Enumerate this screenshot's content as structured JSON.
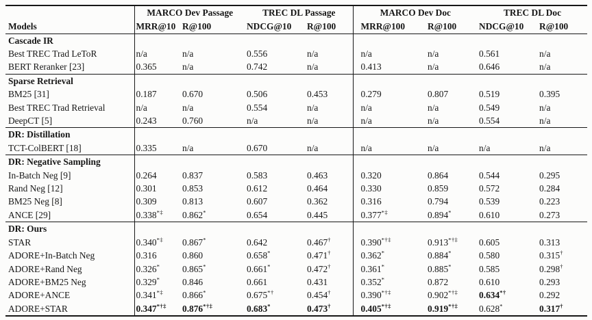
{
  "colors": {
    "background": "#fcfcfb",
    "text": "#161616",
    "rule": "#161616"
  },
  "table": {
    "models_label": "Models",
    "groups": [
      "MARCO Dev Passage",
      "TREC DL Passage",
      "MARCO Dev Doc",
      "TREC DL Doc"
    ],
    "metrics": [
      "MRR@10",
      "R@100",
      "NDCG@10",
      "R@100",
      "MRR@100",
      "R@100",
      "NDCG@10",
      "R@100"
    ],
    "sections": [
      {
        "title": "Cascade IR",
        "rows": [
          {
            "model": "Best TREC Trad LeToR",
            "cells": [
              {
                "v": "n/a"
              },
              {
                "v": "n/a"
              },
              {
                "v": "0.556"
              },
              {
                "v": "n/a"
              },
              {
                "v": "n/a"
              },
              {
                "v": "n/a"
              },
              {
                "v": "0.561"
              },
              {
                "v": "n/a"
              }
            ]
          },
          {
            "model": "BERT Reranker [23]",
            "cells": [
              {
                "v": "0.365"
              },
              {
                "v": "n/a"
              },
              {
                "v": "0.742"
              },
              {
                "v": "n/a"
              },
              {
                "v": "0.413"
              },
              {
                "v": "n/a"
              },
              {
                "v": "0.646"
              },
              {
                "v": "n/a"
              }
            ]
          }
        ]
      },
      {
        "title": "Sparse Retrieval",
        "rows": [
          {
            "model": "BM25 [31]",
            "cells": [
              {
                "v": "0.187"
              },
              {
                "v": "0.670"
              },
              {
                "v": "0.506"
              },
              {
                "v": "0.453"
              },
              {
                "v": "0.279"
              },
              {
                "v": "0.807"
              },
              {
                "v": "0.519"
              },
              {
                "v": "0.395"
              }
            ]
          },
          {
            "model": "Best TREC Trad Retrieval",
            "cells": [
              {
                "v": "n/a"
              },
              {
                "v": "n/a"
              },
              {
                "v": "0.554"
              },
              {
                "v": "n/a"
              },
              {
                "v": "n/a"
              },
              {
                "v": "n/a"
              },
              {
                "v": "0.549"
              },
              {
                "v": "n/a"
              }
            ]
          },
          {
            "model": "DeepCT [5]",
            "cells": [
              {
                "v": "0.243"
              },
              {
                "v": "0.760"
              },
              {
                "v": "n/a"
              },
              {
                "v": "n/a"
              },
              {
                "v": "n/a"
              },
              {
                "v": "n/a"
              },
              {
                "v": "0.554"
              },
              {
                "v": "n/a"
              }
            ]
          }
        ]
      },
      {
        "title": "DR: Distillation",
        "rows": [
          {
            "model": "TCT-ColBERT [18]",
            "cells": [
              {
                "v": "0.335"
              },
              {
                "v": "n/a"
              },
              {
                "v": "0.670"
              },
              {
                "v": "n/a"
              },
              {
                "v": "n/a"
              },
              {
                "v": "n/a"
              },
              {
                "v": "n/a"
              },
              {
                "v": "n/a"
              }
            ]
          }
        ]
      },
      {
        "title": "DR: Negative Sampling",
        "rows": [
          {
            "model": "In-Batch Neg [9]",
            "cells": [
              {
                "v": "0.264"
              },
              {
                "v": "0.837"
              },
              {
                "v": "0.583"
              },
              {
                "v": "0.463"
              },
              {
                "v": "0.320"
              },
              {
                "v": "0.864"
              },
              {
                "v": "0.544"
              },
              {
                "v": "0.295"
              }
            ]
          },
          {
            "model": "Rand Neg [12]",
            "cells": [
              {
                "v": "0.301"
              },
              {
                "v": "0.853"
              },
              {
                "v": "0.612"
              },
              {
                "v": "0.464"
              },
              {
                "v": "0.330"
              },
              {
                "v": "0.859"
              },
              {
                "v": "0.572"
              },
              {
                "v": "0.284"
              }
            ]
          },
          {
            "model": "BM25 Neg [8]",
            "cells": [
              {
                "v": "0.309"
              },
              {
                "v": "0.813"
              },
              {
                "v": "0.607"
              },
              {
                "v": "0.362"
              },
              {
                "v": "0.316"
              },
              {
                "v": "0.794"
              },
              {
                "v": "0.539"
              },
              {
                "v": "0.223"
              }
            ]
          },
          {
            "model": "ANCE [29]",
            "cells": [
              {
                "v": "0.338",
                "s": "*‡"
              },
              {
                "v": "0.862",
                "s": "*"
              },
              {
                "v": "0.654"
              },
              {
                "v": "0.445"
              },
              {
                "v": "0.377",
                "s": "*‡"
              },
              {
                "v": "0.894",
                "s": "*"
              },
              {
                "v": "0.610"
              },
              {
                "v": "0.273"
              }
            ]
          }
        ]
      },
      {
        "title": "DR: Ours",
        "rows": [
          {
            "model": "STAR",
            "cells": [
              {
                "v": "0.340",
                "s": "*‡"
              },
              {
                "v": "0.867",
                "s": "*"
              },
              {
                "v": "0.642"
              },
              {
                "v": "0.467",
                "s": "†"
              },
              {
                "v": "0.390",
                "s": "*†‡"
              },
              {
                "v": "0.913",
                "s": "*†‡"
              },
              {
                "v": "0.605"
              },
              {
                "v": "0.313"
              }
            ]
          },
          {
            "model": "ADORE+In-Batch Neg",
            "cells": [
              {
                "v": "0.316"
              },
              {
                "v": "0.860"
              },
              {
                "v": "0.658",
                "s": "*"
              },
              {
                "v": "0.471",
                "s": "†"
              },
              {
                "v": "0.362",
                "s": "*"
              },
              {
                "v": "0.884",
                "s": "*"
              },
              {
                "v": "0.580"
              },
              {
                "v": "0.315",
                "s": "†"
              }
            ]
          },
          {
            "model": "ADORE+Rand Neg",
            "cells": [
              {
                "v": "0.326",
                "s": "*"
              },
              {
                "v": "0.865",
                "s": "*"
              },
              {
                "v": "0.661",
                "s": "*"
              },
              {
                "v": "0.472",
                "s": "†"
              },
              {
                "v": "0.361",
                "s": "*"
              },
              {
                "v": "0.885",
                "s": "*"
              },
              {
                "v": "0.585"
              },
              {
                "v": "0.298",
                "s": "†"
              }
            ]
          },
          {
            "model": "ADORE+BM25 Neg",
            "cells": [
              {
                "v": "0.329",
                "s": "*"
              },
              {
                "v": "0.846"
              },
              {
                "v": "0.661"
              },
              {
                "v": "0.431"
              },
              {
                "v": "0.352",
                "s": "*"
              },
              {
                "v": "0.872"
              },
              {
                "v": "0.610"
              },
              {
                "v": "0.293"
              }
            ]
          },
          {
            "model": "ADORE+ANCE",
            "cells": [
              {
                "v": "0.341",
                "s": "*‡"
              },
              {
                "v": "0.866",
                "s": "*"
              },
              {
                "v": "0.675",
                "s": "*†"
              },
              {
                "v": "0.454",
                "s": "†"
              },
              {
                "v": "0.390",
                "s": "*†‡"
              },
              {
                "v": "0.902",
                "s": "*†‡"
              },
              {
                "v": "0.634",
                "s": "*†",
                "b": true
              },
              {
                "v": "0.292"
              }
            ]
          },
          {
            "model": "ADORE+STAR",
            "cells": [
              {
                "v": "0.347",
                "s": "*†‡",
                "b": true
              },
              {
                "v": "0.876",
                "s": "*†‡",
                "b": true
              },
              {
                "v": "0.683",
                "s": "*",
                "b": true
              },
              {
                "v": "0.473",
                "s": "†",
                "b": true
              },
              {
                "v": "0.405",
                "s": "*†‡",
                "b": true
              },
              {
                "v": "0.919",
                "s": "*†‡",
                "b": true
              },
              {
                "v": "0.628",
                "s": "*"
              },
              {
                "v": "0.317",
                "s": "†",
                "b": true
              }
            ]
          }
        ]
      }
    ]
  }
}
